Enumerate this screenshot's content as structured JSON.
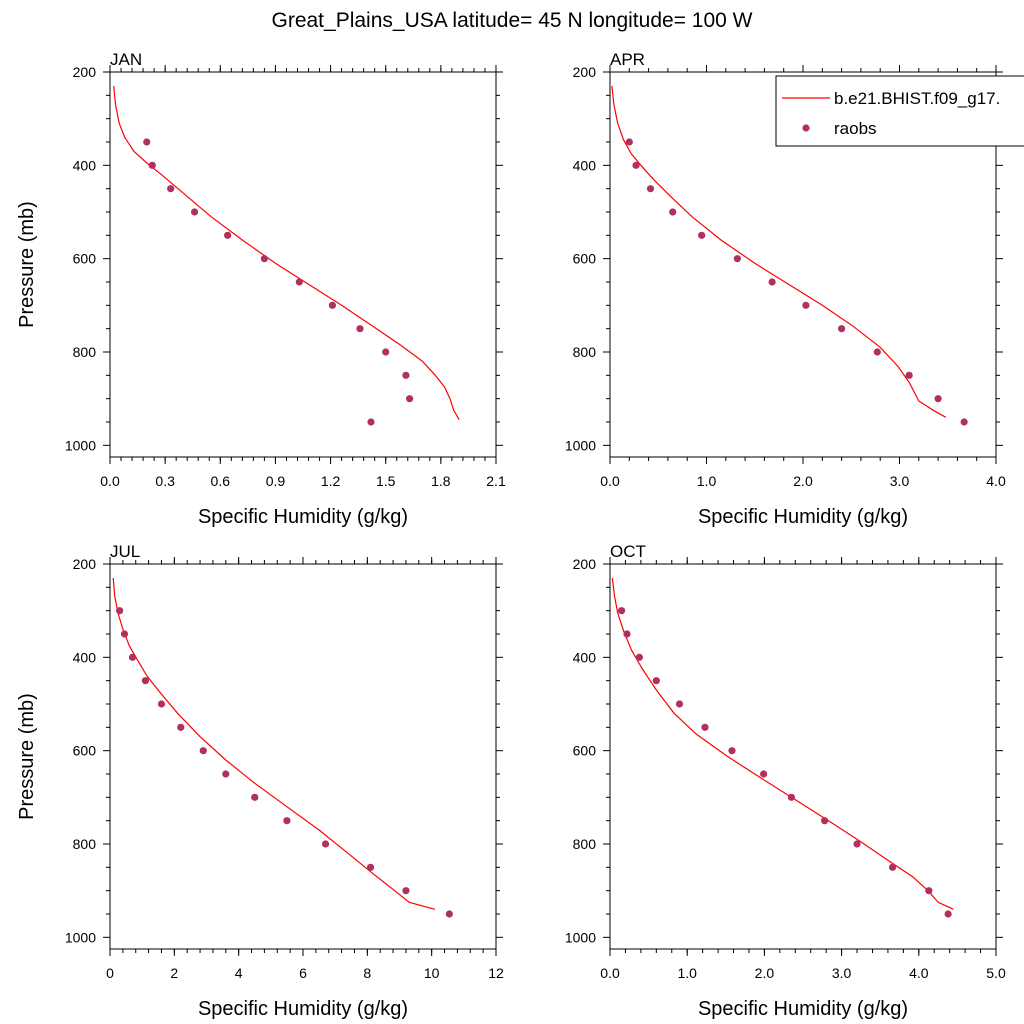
{
  "title": "Great_Plains_USA  latitude= 45 N longitude= 100 W",
  "colors": {
    "model_line": "#ff0000",
    "obs_marker": "#b03060"
  },
  "legend": {
    "model_label": "b.e21.BHIST.f09_g17.",
    "obs_label": "raobs"
  },
  "chart_data": [
    {
      "type": "line",
      "panel_title": "JAN",
      "xlabel": "Specific Humidity (g/kg)",
      "ylabel": "Pressure (mb)",
      "xlim": [
        0,
        2.1
      ],
      "ylim": [
        1025,
        200
      ],
      "xticks": [
        0,
        0.3,
        0.6,
        0.9,
        1.2,
        1.5,
        1.8,
        2.1
      ],
      "xtick_labels": [
        "0.0",
        "0.3",
        "0.6",
        "0.9",
        "1.2",
        "1.5",
        "1.8",
        "2.1"
      ],
      "yticks": [
        200,
        400,
        600,
        800,
        1000
      ],
      "ytick_labels": [
        "200",
        "400",
        "600",
        "800",
        "1000"
      ],
      "series": [
        {
          "name": "b.e21.BHIST.f09_g17.",
          "kind": "line",
          "x": [
            0.02,
            0.03,
            0.05,
            0.08,
            0.13,
            0.2,
            0.28,
            0.4,
            0.55,
            0.72,
            0.9,
            1.08,
            1.26,
            1.43,
            1.58,
            1.7,
            1.77,
            1.82,
            1.85,
            1.87,
            1.9
          ],
          "y": [
            230,
            270,
            310,
            340,
            370,
            395,
            420,
            460,
            510,
            560,
            610,
            655,
            700,
            745,
            785,
            820,
            850,
            875,
            900,
            925,
            945
          ]
        },
        {
          "name": "raobs",
          "kind": "scatter",
          "x": [
            0.2,
            0.23,
            0.33,
            0.46,
            0.64,
            0.84,
            1.03,
            1.21,
            1.36,
            1.5,
            1.61,
            1.63,
            1.42
          ],
          "y": [
            350,
            400,
            450,
            500,
            550,
            600,
            650,
            700,
            750,
            800,
            850,
            900,
            950
          ]
        }
      ]
    },
    {
      "type": "line",
      "panel_title": "APR",
      "xlabel": "Specific Humidity (g/kg)",
      "ylabel": "",
      "xlim": [
        0,
        4.0
      ],
      "ylim": [
        1025,
        200
      ],
      "xticks": [
        0,
        1,
        2,
        3,
        4
      ],
      "xtick_labels": [
        "0.0",
        "1.0",
        "2.0",
        "3.0",
        "4.0"
      ],
      "yticks": [
        200,
        400,
        600,
        800,
        1000
      ],
      "ytick_labels": [
        "200",
        "400",
        "600",
        "800",
        "1000"
      ],
      "legend_position": "top-right",
      "series": [
        {
          "name": "b.e21.BHIST.f09_g17.",
          "kind": "line",
          "x": [
            0.02,
            0.04,
            0.08,
            0.14,
            0.22,
            0.32,
            0.45,
            0.62,
            0.85,
            1.15,
            1.5,
            1.85,
            2.2,
            2.52,
            2.8,
            2.98,
            3.1,
            3.2,
            3.35,
            3.48
          ],
          "y": [
            230,
            270,
            310,
            345,
            375,
            400,
            430,
            465,
            510,
            560,
            610,
            655,
            700,
            745,
            790,
            830,
            865,
            905,
            925,
            940
          ]
        },
        {
          "name": "raobs",
          "kind": "scatter",
          "x": [
            0.2,
            0.27,
            0.42,
            0.65,
            0.95,
            1.32,
            1.68,
            2.03,
            2.4,
            2.77,
            3.1,
            3.4,
            3.67
          ],
          "y": [
            350,
            400,
            450,
            500,
            550,
            600,
            650,
            700,
            750,
            800,
            850,
            900,
            950
          ]
        }
      ]
    },
    {
      "type": "line",
      "panel_title": "JUL",
      "xlabel": "Specific Humidity (g/kg)",
      "ylabel": "Pressure (mb)",
      "xlim": [
        0,
        12
      ],
      "ylim": [
        1025,
        200
      ],
      "xticks": [
        0,
        2,
        4,
        6,
        8,
        10,
        12
      ],
      "xtick_labels": [
        "0",
        "2",
        "4",
        "6",
        "8",
        "10",
        "12"
      ],
      "yticks": [
        200,
        400,
        600,
        800,
        1000
      ],
      "ytick_labels": [
        "200",
        "400",
        "600",
        "800",
        "1000"
      ],
      "series": [
        {
          "name": "b.e21.BHIST.f09_g17.",
          "kind": "line",
          "x": [
            0.1,
            0.15,
            0.25,
            0.4,
            0.6,
            0.85,
            1.15,
            1.55,
            2.1,
            2.8,
            3.6,
            4.5,
            5.5,
            6.5,
            7.4,
            8.2,
            8.85,
            9.3,
            10.1
          ],
          "y": [
            230,
            270,
            305,
            340,
            375,
            405,
            440,
            475,
            520,
            570,
            620,
            670,
            720,
            770,
            820,
            865,
            900,
            925,
            940
          ]
        },
        {
          "name": "raobs",
          "kind": "scatter",
          "x": [
            0.3,
            0.45,
            0.7,
            1.1,
            1.6,
            2.2,
            2.9,
            3.6,
            4.5,
            5.5,
            6.7,
            8.1,
            9.2,
            10.55
          ],
          "y": [
            300,
            350,
            400,
            450,
            500,
            550,
            600,
            650,
            700,
            750,
            800,
            850,
            900,
            950
          ]
        }
      ]
    },
    {
      "type": "line",
      "panel_title": "OCT",
      "xlabel": "Specific Humidity (g/kg)",
      "ylabel": "",
      "xlim": [
        0,
        5.0
      ],
      "ylim": [
        1025,
        200
      ],
      "xticks": [
        0,
        1,
        2,
        3,
        4,
        5
      ],
      "xtick_labels": [
        "0.0",
        "1.0",
        "2.0",
        "3.0",
        "4.0",
        "5.0"
      ],
      "yticks": [
        200,
        400,
        600,
        800,
        1000
      ],
      "ytick_labels": [
        "200",
        "400",
        "600",
        "800",
        "1000"
      ],
      "series": [
        {
          "name": "b.e21.BHIST.f09_g17.",
          "kind": "line",
          "x": [
            0.03,
            0.06,
            0.1,
            0.18,
            0.28,
            0.42,
            0.6,
            0.83,
            1.12,
            1.5,
            1.92,
            2.35,
            2.78,
            3.2,
            3.6,
            3.92,
            4.12,
            4.25,
            4.45
          ],
          "y": [
            230,
            270,
            305,
            345,
            385,
            425,
            470,
            520,
            565,
            610,
            655,
            700,
            745,
            790,
            835,
            870,
            900,
            925,
            940
          ]
        },
        {
          "name": "raobs",
          "kind": "scatter",
          "x": [
            0.15,
            0.22,
            0.38,
            0.6,
            0.9,
            1.23,
            1.58,
            1.99,
            2.35,
            2.78,
            3.2,
            3.66,
            4.13,
            4.38
          ],
          "y": [
            300,
            350,
            400,
            450,
            500,
            550,
            600,
            650,
            700,
            750,
            800,
            850,
            900,
            950
          ]
        }
      ]
    }
  ]
}
